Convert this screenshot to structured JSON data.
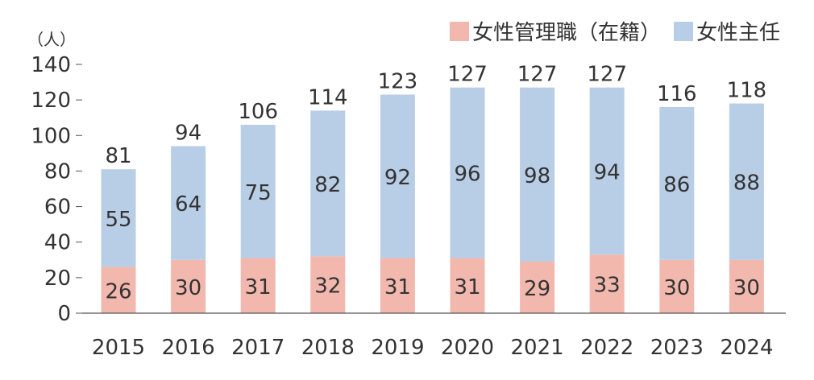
{
  "chart_data": {
    "type": "bar",
    "stacked": true,
    "unit_label": "（人）",
    "categories": [
      "2015",
      "2016",
      "2017",
      "2018",
      "2019",
      "2020",
      "2021",
      "2022",
      "2023",
      "2024"
    ],
    "series": [
      {
        "name": "女性管理職（在籍）",
        "color": "#f2b8ad",
        "values": [
          26,
          30,
          31,
          32,
          31,
          31,
          29,
          33,
          30,
          30
        ]
      },
      {
        "name": "女性主任",
        "color": "#b8cde6",
        "values": [
          55,
          64,
          75,
          82,
          92,
          96,
          98,
          94,
          86,
          88
        ]
      }
    ],
    "totals": [
      81,
      94,
      106,
      114,
      123,
      127,
      127,
      127,
      116,
      118
    ],
    "ylim": [
      0,
      140
    ],
    "yticks": [
      0,
      20,
      40,
      60,
      80,
      100,
      120,
      140
    ],
    "legend_position": "top-right",
    "grid": false
  }
}
